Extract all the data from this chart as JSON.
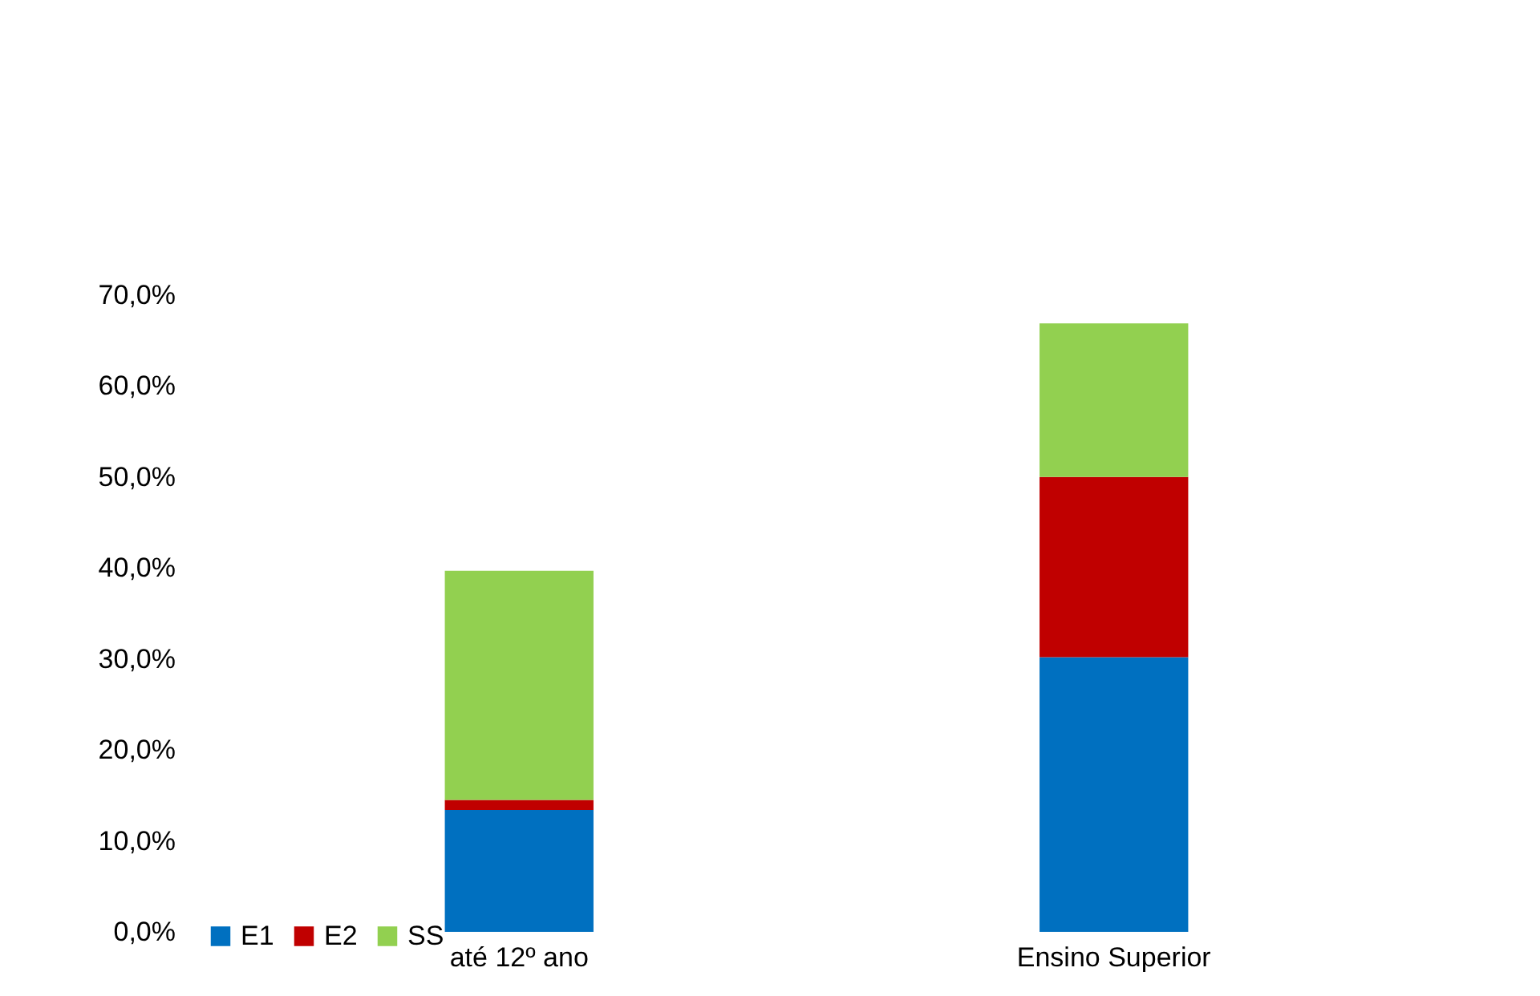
{
  "chart_data": {
    "type": "bar",
    "stacked": true,
    "categories": [
      "até 12º ano",
      "Ensino Superior"
    ],
    "series": [
      {
        "name": "E1",
        "color": "#0070c0",
        "values": [
          13.4,
          30.2
        ]
      },
      {
        "name": "E2",
        "color": "#c00000",
        "values": [
          1.1,
          19.8
        ]
      },
      {
        "name": "SS",
        "color": "#92d050",
        "values": [
          25.2,
          16.9
        ]
      }
    ],
    "ylim": [
      0,
      70
    ],
    "yticks": [
      {
        "value": 0,
        "label": "0,0%"
      },
      {
        "value": 10,
        "label": "10,0%"
      },
      {
        "value": 20,
        "label": "20,0%"
      },
      {
        "value": 30,
        "label": "30,0%"
      },
      {
        "value": 40,
        "label": "40,0%"
      },
      {
        "value": 50,
        "label": "50,0%"
      },
      {
        "value": 60,
        "label": "60,0%"
      },
      {
        "value": 70,
        "label": "70,0%"
      }
    ],
    "legend": "bottom"
  }
}
